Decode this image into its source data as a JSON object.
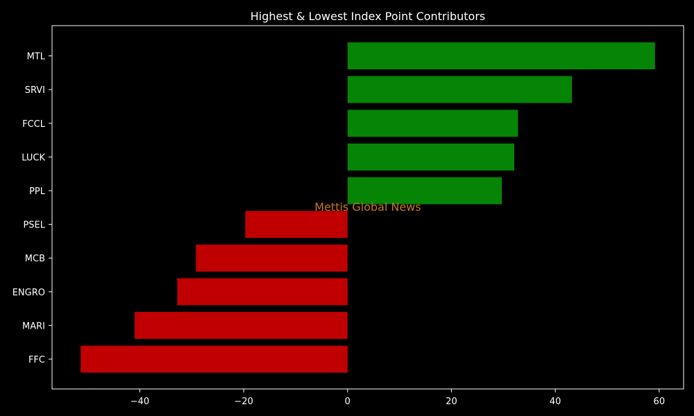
{
  "chart_data": {
    "type": "bar",
    "orientation": "horizontal",
    "title": "Highest & Lowest Index Point Contributors",
    "xlabel": "",
    "ylabel": "",
    "categories": [
      "MTL",
      "SRVI",
      "FCCL",
      "LUCK",
      "PPL",
      "PSEL",
      "MCB",
      "ENGRO",
      "MARI",
      "FFC"
    ],
    "values": [
      59.2,
      43.2,
      32.8,
      32.1,
      29.7,
      -19.7,
      -29.2,
      -32.8,
      -41.0,
      -51.4
    ],
    "xlim": [
      -56.9,
      64.7
    ],
    "xticks": [
      -40,
      -20,
      0,
      20,
      40,
      60
    ],
    "xtick_labels": [
      "−40",
      "−20",
      "0",
      "20",
      "40",
      "60"
    ],
    "grid": false,
    "legend": "none",
    "colors": {
      "positive": "#068406",
      "negative": "#c00000",
      "background": "#000000",
      "axes": "#ffffff",
      "text": "#ffffff"
    },
    "watermark": {
      "text": "Mettis Global News",
      "color": "#c8781e"
    }
  }
}
